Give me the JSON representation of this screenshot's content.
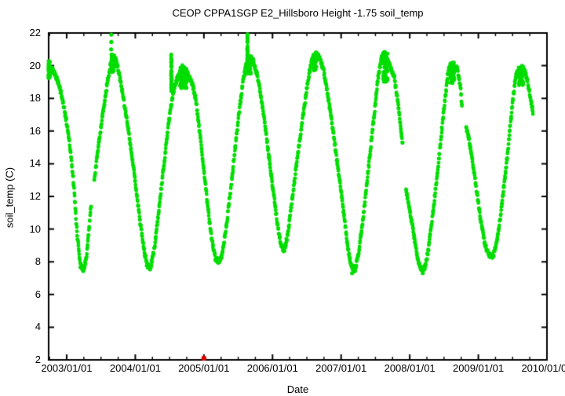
{
  "chart_data": {
    "type": "scatter",
    "title": "CEOP CPPA1SGP E2_Hillsboro Height -1.75 soil_temp",
    "xlabel": "Date",
    "ylabel": "soil_temp (C)",
    "x_tick_labels": [
      "2003/01/01",
      "2004/01/01",
      "2005/01/01",
      "2006/01/01",
      "2007/01/01",
      "2008/01/01",
      "2009/01/01",
      "2010/01/01"
    ],
    "x_tick_years": [
      2003,
      2004,
      2005,
      2006,
      2007,
      2008,
      2009,
      2010
    ],
    "x_minor_interval_years": 0.25,
    "y_ticks": [
      2,
      4,
      6,
      8,
      10,
      12,
      14,
      16,
      18,
      20,
      22
    ],
    "x_range_decimal_years": [
      2002.737,
      2010.0
    ],
    "ylim": [
      2,
      22
    ],
    "grid": false,
    "legend": "none",
    "background_color": "#ffffff",
    "axis_color": "#000000",
    "series": [
      {
        "name": "soil_temp",
        "color": "#00dd00",
        "marker": "filled-circle",
        "marker_radius_px": 2.4,
        "band_jitter_C": 0.15,
        "segments": [
          [
            [
              2002.737,
              19.9
            ],
            [
              2002.79,
              19.8
            ],
            [
              2002.85,
              19.3
            ],
            [
              2002.92,
              18.3
            ],
            [
              2002.98,
              17.0
            ],
            [
              2003.04,
              15.4
            ],
            [
              2003.1,
              12.8
            ],
            [
              2003.15,
              9.8
            ],
            [
              2003.2,
              7.8
            ],
            [
              2003.25,
              7.5
            ],
            [
              2003.29,
              8.3
            ],
            [
              2003.33,
              10.2
            ],
            [
              2003.36,
              11.7
            ]
          ],
          [
            [
              2003.4,
              12.9
            ],
            [
              2003.46,
              15.0
            ],
            [
              2003.52,
              16.9
            ],
            [
              2003.58,
              18.6
            ],
            [
              2003.63,
              19.9
            ],
            [
              2003.67,
              20.6
            ],
            [
              2003.71,
              20.4
            ],
            [
              2003.76,
              19.6
            ],
            [
              2003.82,
              18.2
            ],
            [
              2003.88,
              16.6
            ],
            [
              2003.94,
              14.8
            ],
            [
              2004.0,
              12.9
            ],
            [
              2004.06,
              10.8
            ],
            [
              2004.12,
              8.9
            ],
            [
              2004.17,
              7.8
            ],
            [
              2004.22,
              7.6
            ],
            [
              2004.27,
              8.6
            ],
            [
              2004.33,
              10.6
            ],
            [
              2004.39,
              12.9
            ],
            [
              2004.45,
              15.2
            ],
            [
              2004.51,
              17.3
            ],
            [
              2004.57,
              18.7
            ],
            [
              2004.63,
              19.4
            ],
            [
              2004.68,
              19.9
            ],
            [
              2004.73,
              19.7
            ],
            [
              2004.78,
              19.3
            ],
            [
              2004.83,
              18.9
            ],
            [
              2004.88,
              18.0
            ],
            [
              2004.93,
              16.3
            ],
            [
              2004.99,
              14.0
            ],
            [
              2005.05,
              11.6
            ],
            [
              2005.11,
              9.5
            ],
            [
              2005.17,
              8.2
            ],
            [
              2005.22,
              8.0
            ],
            [
              2005.27,
              8.5
            ],
            [
              2005.33,
              10.3
            ],
            [
              2005.39,
              12.4
            ],
            [
              2005.45,
              14.8
            ],
            [
              2005.51,
              17.0
            ],
            [
              2005.57,
              19.0
            ],
            [
              2005.62,
              20.2
            ],
            [
              2005.67,
              20.5
            ],
            [
              2005.72,
              20.3
            ],
            [
              2005.78,
              19.4
            ],
            [
              2005.84,
              17.9
            ],
            [
              2005.9,
              16.1
            ],
            [
              2005.96,
              14.0
            ],
            [
              2006.02,
              12.0
            ],
            [
              2006.08,
              10.1
            ],
            [
              2006.13,
              8.9
            ],
            [
              2006.17,
              8.7
            ],
            [
              2006.22,
              9.6
            ],
            [
              2006.28,
              11.6
            ],
            [
              2006.34,
              13.6
            ],
            [
              2006.4,
              15.6
            ],
            [
              2006.46,
              17.4
            ],
            [
              2006.52,
              19.2
            ],
            [
              2006.58,
              20.4
            ],
            [
              2006.63,
              20.7
            ],
            [
              2006.68,
              20.5
            ],
            [
              2006.74,
              19.8
            ],
            [
              2006.8,
              18.4
            ],
            [
              2006.86,
              16.7
            ],
            [
              2006.92,
              14.8
            ],
            [
              2006.98,
              13.0
            ],
            [
              2007.04,
              10.9
            ],
            [
              2007.1,
              8.8
            ],
            [
              2007.15,
              7.7
            ],
            [
              2007.2,
              7.5
            ],
            [
              2007.25,
              8.4
            ],
            [
              2007.31,
              10.3
            ],
            [
              2007.37,
              12.6
            ],
            [
              2007.43,
              15.0
            ],
            [
              2007.49,
              17.3
            ],
            [
              2007.54,
              19.3
            ],
            [
              2007.59,
              20.5
            ],
            [
              2007.63,
              20.8
            ],
            [
              2007.67,
              20.3
            ],
            [
              2007.72,
              19.9
            ],
            [
              2007.77,
              19.4
            ],
            [
              2007.81,
              18.3
            ],
            [
              2007.85,
              16.9
            ],
            [
              2007.88,
              15.8
            ],
            [
              2007.9,
              15.1
            ]
          ],
          [
            [
              2007.945,
              12.4
            ],
            [
              2008.0,
              11.2
            ],
            [
              2008.06,
              9.6
            ],
            [
              2008.12,
              8.1
            ],
            [
              2008.17,
              7.5
            ],
            [
              2008.22,
              7.6
            ],
            [
              2008.27,
              8.7
            ],
            [
              2008.33,
              10.7
            ],
            [
              2008.39,
              12.9
            ],
            [
              2008.45,
              15.3
            ],
            [
              2008.51,
              17.8
            ],
            [
              2008.56,
              19.6
            ],
            [
              2008.6,
              20.1
            ],
            [
              2008.64,
              19.7
            ],
            [
              2008.68,
              20.0
            ],
            [
              2008.72,
              19.2
            ],
            [
              2008.75,
              18.2
            ],
            [
              2008.765,
              17.2
            ]
          ],
          [
            [
              2008.82,
              16.3
            ],
            [
              2008.86,
              15.6
            ],
            [
              2008.92,
              14.0
            ],
            [
              2008.98,
              12.2
            ],
            [
              2009.04,
              10.4
            ],
            [
              2009.1,
              9.0
            ],
            [
              2009.16,
              8.4
            ],
            [
              2009.21,
              8.3
            ],
            [
              2009.26,
              9.0
            ],
            [
              2009.32,
              10.7
            ],
            [
              2009.38,
              12.8
            ],
            [
              2009.44,
              15.2
            ],
            [
              2009.5,
              17.8
            ],
            [
              2009.55,
              19.5
            ],
            [
              2009.6,
              19.6
            ],
            [
              2009.64,
              19.9
            ],
            [
              2009.68,
              19.6
            ],
            [
              2009.72,
              19.0
            ],
            [
              2009.76,
              18.0
            ],
            [
              2009.8,
              17.1
            ]
          ]
        ],
        "dense_patches": [
          [
            2002.745,
            19.2,
            20.3,
            0.012
          ],
          [
            2003.67,
            19.6,
            20.7,
            0.02
          ],
          [
            2004.525,
            18.4,
            20.8,
            0.004
          ],
          [
            2004.7,
            18.6,
            19.9,
            0.05
          ],
          [
            2005.635,
            20.3,
            21.95,
            0.004
          ],
          [
            2005.66,
            19.5,
            20.6,
            0.025
          ],
          [
            2006.62,
            19.7,
            20.8,
            0.025
          ],
          [
            2007.645,
            19.0,
            20.8,
            0.035
          ],
          [
            2008.62,
            18.9,
            20.2,
            0.03
          ],
          [
            2009.62,
            18.8,
            19.9,
            0.035
          ]
        ],
        "outlier_dots": [
          [
            2003.648,
            21.0
          ],
          [
            2003.65,
            21.45
          ],
          [
            2003.65,
            21.9
          ],
          [
            2007.16,
            7.3
          ],
          [
            2008.19,
            7.3
          ]
        ]
      },
      {
        "name": "flagged_value",
        "color": "#dd0000",
        "marker": "filled-circle",
        "marker_radius_px": 3.2,
        "points": [
          [
            2005.0,
            2.1
          ]
        ]
      }
    ]
  }
}
